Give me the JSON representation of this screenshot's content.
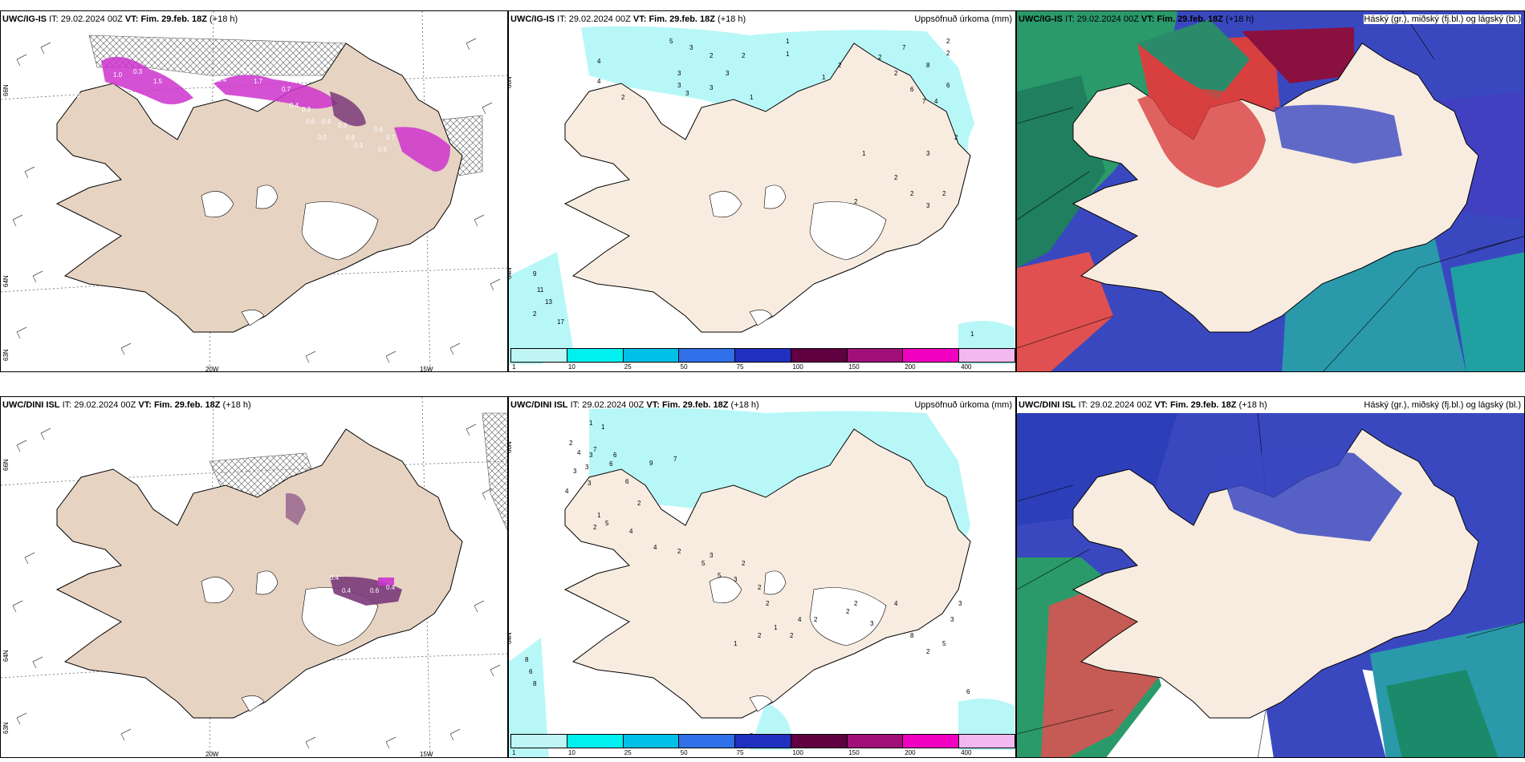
{
  "rows": [
    {
      "model": "UWC/IG-IS",
      "it_label": "IT:",
      "it_value": "29.02.2024 00Z",
      "vt_label": "VT:",
      "vt_value": "Fim. 29.feb. 18Z",
      "lead": "(+18 h)",
      "lat_labels": [
        "66N",
        "64N",
        "63N"
      ],
      "lon_labels": [
        "20W",
        "15W"
      ],
      "precip_numbers": [
        "5",
        "3",
        "2",
        "3",
        "3",
        "2",
        "1",
        "4",
        "3",
        "3",
        "2",
        "4",
        "3",
        "1",
        "1",
        "2",
        "1",
        "2",
        "7",
        "2",
        "8",
        "2",
        "6",
        "4",
        "7",
        "2",
        "6",
        "2",
        "3",
        "1",
        "2",
        "2",
        "3",
        "2",
        "2",
        "9",
        "11",
        "13",
        "2",
        "17",
        "1"
      ],
      "snow_numbers": [
        "0.4",
        "0.7",
        "1.0",
        "0.3",
        "1.5",
        "0.4",
        "1.4",
        "1.7",
        "0.7",
        "0.4",
        "0.3",
        "0.6",
        "0.4",
        "0.3",
        "0.5",
        "0.8",
        "0.3",
        "0.6",
        "0.7",
        "0.5"
      ]
    },
    {
      "model": "UWC/DINI ISL",
      "it_label": "IT:",
      "it_value": "29.02.2024 00Z",
      "vt_label": "VT:",
      "vt_value": "Fim. 29.feb. 18Z",
      "lead": "(+18 h)",
      "lat_labels": [
        "66N",
        "64N",
        "63N"
      ],
      "lon_labels": [
        "20W",
        "15W"
      ],
      "precip_numbers": [
        "1",
        "1",
        "2",
        "7",
        "4",
        "3",
        "6",
        "6",
        "3",
        "3",
        "3",
        "4",
        "6",
        "9",
        "7",
        "2",
        "1",
        "5",
        "2",
        "4",
        "4",
        "2",
        "3",
        "5",
        "5",
        "3",
        "2",
        "2",
        "2",
        "1",
        "4",
        "2",
        "2",
        "1",
        "2",
        "2",
        "2",
        "3",
        "4",
        "8",
        "2",
        "5",
        "3",
        "3",
        "8",
        "6",
        "8",
        "6",
        "2"
      ],
      "snow_numbers": [
        "0.4",
        "0.4",
        "0.6",
        "0.4"
      ]
    }
  ],
  "precip_title": "Uppsöfnuð úrkoma (mm)",
  "cloud_title": "Háský (gr.), miðský (fj.bl.) og lágský (bl.)",
  "colorbar": {
    "ticks": [
      "1",
      "10",
      "25",
      "50",
      "75",
      "100",
      "150",
      "200",
      "400"
    ],
    "colors": [
      "#bff5f5",
      "#00f0f0",
      "#00c0e8",
      "#3070e8",
      "#2030c0",
      "#600040",
      "#a01078",
      "#f000c0",
      "#f2b8f0"
    ]
  },
  "colors": {
    "land": "#f8ece0",
    "land_left": "#e6d3c2",
    "precip": "#b8f7f7",
    "snow": "#cc33cc",
    "high_cloud": "#4040c0",
    "mid_cloud": "#20a080",
    "low_cloud": "#d83030"
  }
}
